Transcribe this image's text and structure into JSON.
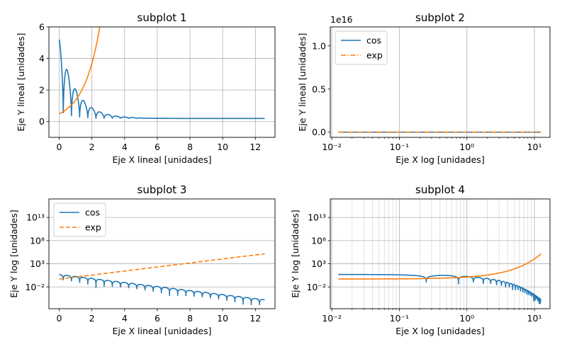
{
  "colors": {
    "cos": "#1f77b4",
    "exp": "#ff7f0e",
    "grid": "#b0b0b0"
  },
  "chart_data": [
    {
      "type": "line",
      "title": "subplot 1",
      "xlabel": "Eje X lineal [unidades]",
      "ylabel": "Eje Y lineal [unidades]",
      "xscale": "linear",
      "yscale": "linear",
      "xlim": [
        -0.63,
        13.2
      ],
      "ylim": [
        -1,
        6
      ],
      "xticks": [
        0,
        2,
        4,
        6,
        8,
        10,
        12
      ],
      "xtick_labels": [
        "0",
        "2",
        "4",
        "6",
        "8",
        "10",
        "12"
      ],
      "yticks": [
        0,
        2,
        4,
        6
      ],
      "ytick_labels": [
        "0",
        "2",
        "4",
        "6"
      ],
      "grid": "major",
      "legend": null,
      "series": [
        {
          "function": "5*exp(-x)*|cos(2*pi*x)|^0.5 + 0.2",
          "style": "solid",
          "color": "cos"
        },
        {
          "function": "0.5*exp(x)",
          "style": "solid",
          "color": "exp"
        }
      ]
    },
    {
      "type": "line",
      "title": "subplot 2",
      "xlabel": "Eje X log [unidades]",
      "ylabel": "Eje Y lineal [unidades]",
      "xscale": "log",
      "yscale": "linear",
      "xlim": [
        0.0095,
        17
      ],
      "ylim": [
        -600000000000000.0,
        1.22e+16
      ],
      "offset_text": "1e16",
      "xticks": [
        0.01,
        0.1,
        1,
        10
      ],
      "xtick_labels": [
        "10⁻²",
        "10⁻¹",
        "10⁰",
        "10¹"
      ],
      "yticks": [
        0,
        5000000000000000.0,
        1e+16
      ],
      "ytick_labels": [
        "0.0",
        "0.5",
        "1.0"
      ],
      "grid": "major-x-only",
      "legend": {
        "position": "upper-left",
        "entries": [
          "cos",
          "exp"
        ]
      },
      "series": [
        {
          "name": "cos",
          "function": "5*exp(-x)*|cos(2*pi*x)|^0.5 + 0.2",
          "style": "solid",
          "color": "cos"
        },
        {
          "name": "exp",
          "function": "0.5*exp(x)",
          "style": "dashdot",
          "color": "exp"
        }
      ]
    },
    {
      "type": "line",
      "title": "subplot 3",
      "xlabel": "Eje X lineal [unidades]",
      "ylabel": "Eje Y log [unidades]",
      "xscale": "linear",
      "yscale": "log",
      "xlim": [
        -0.63,
        13.2
      ],
      "ylim": [
        2e-07,
        1e+17
      ],
      "xticks": [
        0,
        2,
        4,
        6,
        8,
        10,
        12
      ],
      "xtick_labels": [
        "0",
        "2",
        "4",
        "6",
        "8",
        "10",
        "12"
      ],
      "yticks": [
        0.01,
        1000,
        100000000.0,
        10000000000000.0
      ],
      "ytick_labels": [
        "10⁻²",
        "10³",
        "10⁸",
        "10¹³"
      ],
      "grid": "major-y-only",
      "legend": {
        "position": "upper-left",
        "entries": [
          "cos",
          "exp"
        ]
      },
      "series": [
        {
          "name": "cos",
          "function": "5*exp(-x)*|cos(2*pi*x)|^0.5 + tiny",
          "style": "solid",
          "color": "cos"
        },
        {
          "name": "exp",
          "function": "0.5*exp(x)",
          "style": "dashed",
          "color": "exp"
        }
      ]
    },
    {
      "type": "line",
      "title": "subplot 4",
      "xlabel": "Eje X log [unidades]",
      "ylabel": "Eje Y log [unidades]",
      "xscale": "log",
      "yscale": "log",
      "xlim": [
        0.0095,
        17
      ],
      "ylim": [
        2e-07,
        1e+17
      ],
      "xticks": [
        0.01,
        0.1,
        1,
        10
      ],
      "xtick_labels": [
        "10⁻²",
        "10⁻¹",
        "10⁰",
        "10¹"
      ],
      "yticks": [
        0.01,
        1000,
        100000000.0,
        10000000000000.0
      ],
      "ytick_labels": [
        "10⁻²",
        "10³",
        "10⁸",
        "10¹³"
      ],
      "grid": "major-and-minor",
      "legend": null,
      "series": [
        {
          "function": "5*exp(-x)*|cos(2*pi*x)|^0.5 + tiny",
          "style": "solid",
          "color": "cos"
        },
        {
          "function": "0.5*exp(x)",
          "style": "solid",
          "color": "exp"
        }
      ]
    }
  ]
}
